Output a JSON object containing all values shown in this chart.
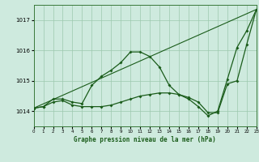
{
  "title": "Graphe pression niveau de la mer (hPa)",
  "xlim": [
    0,
    23
  ],
  "ylim": [
    1013.5,
    1017.5
  ],
  "yticks": [
    1014,
    1015,
    1016,
    1017
  ],
  "xticks": [
    0,
    1,
    2,
    3,
    4,
    5,
    6,
    7,
    8,
    9,
    10,
    11,
    12,
    13,
    14,
    15,
    16,
    17,
    18,
    19,
    20,
    21,
    22,
    23
  ],
  "bg_color": "#ceeade",
  "line_color": "#1a5c1a",
  "grid_color": "#9dc8ae",
  "series1_x": [
    0,
    1,
    2,
    3,
    4,
    5,
    6,
    7,
    8,
    9,
    10,
    11,
    12,
    13,
    14,
    15,
    16,
    17,
    18,
    19,
    20,
    21,
    22,
    23
  ],
  "series1_y": [
    1014.1,
    1014.15,
    1014.4,
    1014.4,
    1014.3,
    1014.25,
    1014.85,
    1015.15,
    1015.35,
    1015.6,
    1015.95,
    1015.95,
    1015.8,
    1015.45,
    1014.85,
    1014.55,
    1014.4,
    1014.15,
    1013.85,
    1014.0,
    1015.05,
    1016.1,
    1016.65,
    1017.35
  ],
  "series2_x": [
    0,
    1,
    2,
    3,
    4,
    5,
    6,
    7,
    8,
    9,
    10,
    11,
    12,
    13,
    14,
    15,
    16,
    17,
    18,
    19,
    20,
    21,
    22,
    23
  ],
  "series2_y": [
    1014.1,
    1014.15,
    1014.3,
    1014.35,
    1014.2,
    1014.15,
    1014.15,
    1014.15,
    1014.2,
    1014.3,
    1014.4,
    1014.5,
    1014.55,
    1014.6,
    1014.6,
    1014.55,
    1014.45,
    1014.3,
    1013.95,
    1013.95,
    1014.9,
    1015.0,
    1016.2,
    1017.35
  ],
  "series3_x": [
    0,
    23
  ],
  "series3_y": [
    1014.1,
    1017.35
  ]
}
